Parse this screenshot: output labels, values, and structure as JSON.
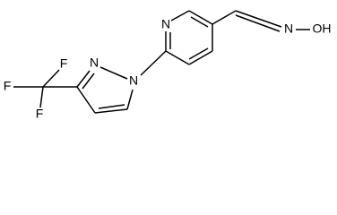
{
  "atoms": {
    "pyridine_n": "N",
    "pyrazole_n2": "N",
    "pyrazole_n1": "N",
    "f_top": "F",
    "f_left": "F",
    "f_bottom": "F",
    "oxime_n": "N",
    "hydroxyl": "OH"
  }
}
